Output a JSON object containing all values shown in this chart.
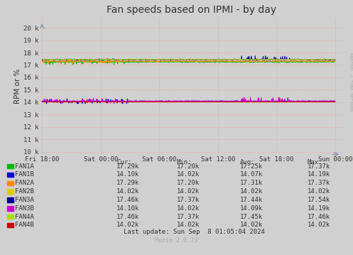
{
  "title": "Fan speeds based on IPMI - by day",
  "ylabel": "RPM or %",
  "background_color": "#d0d0d0",
  "plot_bg_color": "#d0d0d0",
  "grid_color": "#ff9999",
  "yticks": [
    10000,
    11000,
    12000,
    13000,
    14000,
    15000,
    16000,
    17000,
    18000,
    19000,
    20000
  ],
  "ytick_labels": [
    "10 k",
    "11 k",
    "12 k",
    "13 k",
    "14 k",
    "15 k",
    "16 k",
    "17 k",
    "18 k",
    "19 k",
    "20 k"
  ],
  "ylim": [
    9800,
    20800
  ],
  "xtick_labels": [
    "Fri 18:00",
    "Sat 00:00",
    "Sat 06:00",
    "Sat 12:00",
    "Sat 18:00",
    "Sun 00:00"
  ],
  "fans": [
    {
      "name": "FAN1A",
      "color": "#00bb00",
      "avg": 17250,
      "noise": 30,
      "cur": "17.29k",
      "min": "17.20k",
      "avg_str": "17.25k",
      "max": "17.37k",
      "spike_early": true,
      "spike_late": false
    },
    {
      "name": "FAN1B",
      "color": "#0000cc",
      "avg": 14070,
      "noise": 20,
      "cur": "14.10k",
      "min": "14.02k",
      "avg_str": "14.07k",
      "max": "14.19k",
      "spike_early": true,
      "spike_late": false
    },
    {
      "name": "FAN2A",
      "color": "#ff8800",
      "avg": 17310,
      "noise": 30,
      "cur": "17.29k",
      "min": "17.20k",
      "avg_str": "17.31k",
      "max": "17.37k",
      "spike_early": true,
      "spike_late": false
    },
    {
      "name": "FAN2B",
      "color": "#ddcc00",
      "avg": 14020,
      "noise": 3,
      "cur": "14.02k",
      "min": "14.02k",
      "avg_str": "14.02k",
      "max": "14.02k",
      "spike_early": false,
      "spike_late": false
    },
    {
      "name": "FAN3A",
      "color": "#000099",
      "avg": 17440,
      "noise": 20,
      "cur": "17.46k",
      "min": "17.37k",
      "avg_str": "17.44k",
      "max": "17.54k",
      "spike_early": false,
      "spike_late": true
    },
    {
      "name": "FAN3B",
      "color": "#cc00cc",
      "avg": 14090,
      "noise": 20,
      "cur": "14.10k",
      "min": "14.02k",
      "avg_str": "14.09k",
      "max": "14.19k",
      "spike_early": true,
      "spike_late": true
    },
    {
      "name": "FAN4A",
      "color": "#aadd00",
      "avg": 17450,
      "noise": 10,
      "cur": "17.46k",
      "min": "17.37k",
      "avg_str": "17.45k",
      "max": "17.46k",
      "spike_early": false,
      "spike_late": false
    },
    {
      "name": "FAN4B",
      "color": "#cc0000",
      "avg": 14020,
      "noise": 3,
      "cur": "14.02k",
      "min": "14.02k",
      "avg_str": "14.02k",
      "max": "14.02k",
      "spike_early": false,
      "spike_late": false
    }
  ],
  "n_points": 800,
  "footer": "Last update: Sun Sep  8 01:05:04 2024",
  "munin_version": "Munin 2.0.73",
  "watermark": "RRDTOOL / TOBI OETIKER"
}
